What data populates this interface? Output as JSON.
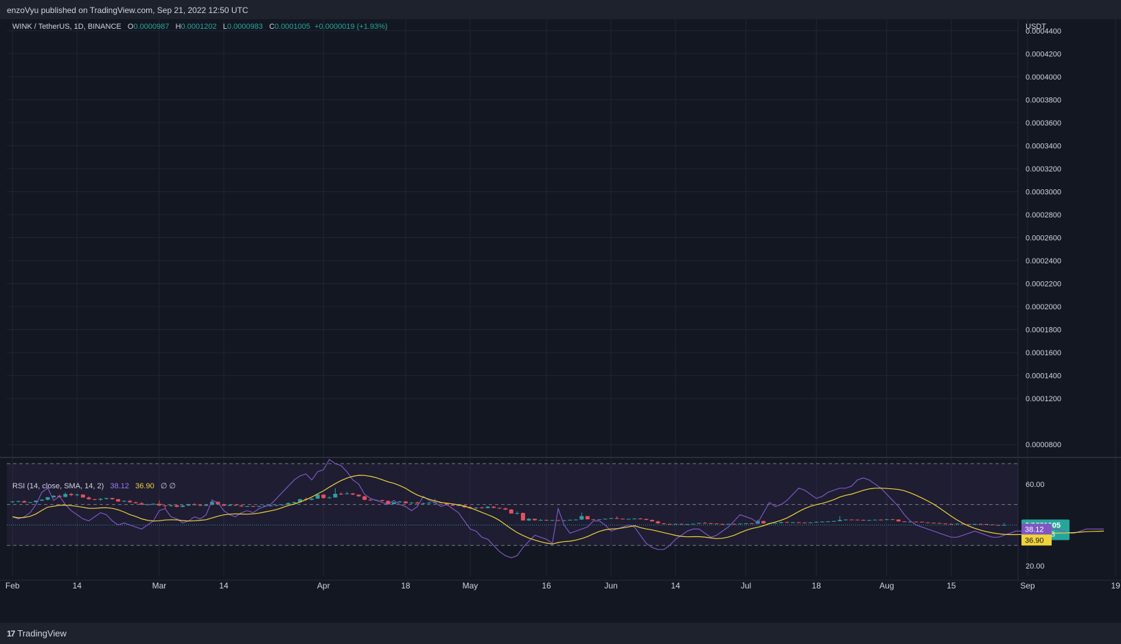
{
  "header": {
    "published": "enzoVyu published on TradingView.com, Sep 21, 2022 12:50 UTC"
  },
  "footer": {
    "brand": "TradingView",
    "brand_mark": "17"
  },
  "legend": {
    "symbol": "WINK / TetherUS, 1D, BINANCE",
    "o_label": "O",
    "open": "0.0000987",
    "h_label": "H",
    "high": "0.0001202",
    "l_label": "L",
    "low": "0.0000983",
    "c_label": "C",
    "close": "0.0001005",
    "change": "+0.0000019 (+1.93%)"
  },
  "rsi_legend": {
    "name": "RSI (14, close, SMA, 14, 2)",
    "rsi": "38.12",
    "sma": "36.90",
    "extra": "∅ ∅"
  },
  "axis": {
    "currency": "USDT",
    "price_ticks": [
      "0.0004400",
      "0.0004200",
      "0.0004000",
      "0.0003800",
      "0.0003600",
      "0.0003400",
      "0.0003200",
      "0.0003000",
      "0.0002800",
      "0.0002600",
      "0.0002400",
      "0.0002200",
      "0.0002000",
      "0.0001800",
      "0.0001600",
      "0.0001400",
      "0.0001200",
      "0.0000800"
    ],
    "price_tick_values": [
      0.00044,
      0.00042,
      0.0004,
      0.00038,
      0.00036,
      0.00034,
      0.00032,
      0.0003,
      0.00028,
      0.00026,
      0.00024,
      0.00022,
      0.0002,
      0.00018,
      0.00016,
      0.00014,
      0.00012,
      8e-05
    ],
    "last_price_label": "0.0001005",
    "countdown": "11:09:23",
    "rsi_ticks": [
      "60.00",
      "40.00",
      "20.00"
    ],
    "rsi_tick_values": [
      60,
      40,
      20
    ],
    "rsi_label": "38.12",
    "rsi_sma_label": "36.90",
    "x_labels": [
      "Feb",
      "14",
      "Mar",
      "14",
      "Apr",
      "18",
      "May",
      "16",
      "Jun",
      "14",
      "Jul",
      "18",
      "Aug",
      "15",
      "Sep",
      "19"
    ],
    "x_label_index": [
      0,
      11,
      25,
      36,
      53,
      67,
      78,
      91,
      102,
      113,
      125,
      137,
      149,
      160,
      173,
      188
    ]
  },
  "colors": {
    "background": "#131722",
    "grid": "#232632",
    "up": "#26a69a",
    "down": "#ef5350",
    "rsi_line": "#7e57c2",
    "rsi_sma": "#f0d33a",
    "rsi_band": "#7e57c2",
    "price_badge": "#26a69a",
    "rsi_badge": "#7e57c2",
    "sma_badge": "#f0d33a"
  },
  "chart_data": {
    "type": "candlestick",
    "title": "WINK / TetherUS, 1D, BINANCE",
    "x_start": "2022-02-01",
    "x_end": "2022-09-21",
    "y_scale": "linear",
    "ylim": [
      7e-05,
      0.00045
    ],
    "candles_compact": "3000,3100,2950,3050|3050,3120,2980,3080|3080,3150,2950,2960|2960,3000,2920,2990|2990,3150,2970,3120|3120,3250,3080,3200|3200,3450,3150,3420|3420,3600,3380,3550|3550,3650,3400,3450|3450,3850,3400,3700|3700,3800,3500,3600|3600,3750,3500,3650|3650,3680,3380,3400|3400,3500,3200,3250|3250,3300,3150,3200|3200,3350,3100,3280|3280,3380,3200,3350|3350,3380,3200,3250|3250,3280,3030,3050|3050,3150,3000,3100|3100,3200,2950,2980|2980,3050,2880,2900|2900,3000,2750,2780|2780,2850,2700,2800|2800,2900,2750,2850|2850,3150,2650,2700|2700,2750,2420,2650|2650,2800,2600,2720|2720,2800,2550,2580|2580,2720,2550,2700|2700,2850,2650,2820|2820,2900,2700,2740|2740,2800,2650,2680|2680,2780,2650,2760|2760,3250,2740,3020|3020,3050,2780,2800|2800,2850,2650,2680|2680,2800,2650,2760|2760,2800,2660,2700|2700,2780,2600,2620|2620,2680,2580,2640|2640,2700,2590,2600|2600,2680,2570,2660|2660,2720,2600,2690|2690,2750,2620,2700|2700,2760,2650,2740|2740,2800,2680,2780|2780,2950,2750,2920|2920,3050,2900,3000|3000,3300,2980,3250|3250,3400,3100,3200|3200,3350,3150,3300|3300,3700,3280,3650|3650,3600,3300,3350|3350,3500,3300,3400|3400,4200,3380,3720|3720,3850,3600,3700|3700,3900,3650,3750|3750,3800,3600,3650|3650,3650,3450,3500|3500,3520,3150,3200|3200,3250,3100,3150|3150,3200,3100,3180|3180,3200,3050,3100|3100,3150,2800,2820|2820,3000,2800,2980|2980,3100,2950,3050|3050,3080,2880,2900|2900,2980,2850,2960|2960,3050,2850,2880|2880,2950,2800,2900|2900,3000,2850,2950|2950,3280,2880,2980|2980,3020,2900,2920|2920,2940,2700,2750|2750,2780,2650,2680|2680,2750,2650,2720|2720,2730,2500,2550|2550,2650,2400,2450|2450,2550,2400,2520|2520,2600,2450,2480|2480,2650,2450,2600|2600,2650,2450,2500|2500,2520,2400,2450|2450,2520,2300,2350|2350,2400,2100,2000|2000,2200,1900,2050|2050,2100,1500,1400|1400,1600,1350,1550|1550,1500,1380,1420|1420,1500,1380,1450|1450,1480,1380,1400|1400,1450,1370,1430|1430,1460,1380,1400|1400,1450,1380,1420|1420,1480,1400,1460|1460,1500,1420,1480|1480,2080,1450,1780|1780,1700,1480,1500|1500,1520,1450,1480|1480,1520,1450,1500|1500,1560,1470,1550|1550,1620,1530,1600|1600,1760,1520,1550|1550,1580,1480,1520|1520,1560,1490,1540|1540,1600,1520,1560|1560,1630,1520,1530|1530,1560,1420,1450|1450,1480,1300,1320|1320,1380,1100,1150|1150,1160,1020,1100|1100,1130,1050,1080|1080,1120,1040,1110|1110,1140,1050,1070|1070,1100,1040,1090|1090,1130,1060,1120|1120,1200,1100,1180|1180,1260,1140,1160|1160,1200,1120,1140|1140,1160,1080,1100|1100,1130,1060,1080|1080,1120,1060,1110|1110,1140,1070,1090|1090,1150,1080,1130|1130,1170,1100,1150|1150,1180,1100,1120|1120,1480,1090,1350|1350,1380,1100,1150|1150,1180,1120,1160|1160,1200,1130,1180|1180,1270,1160,1260|1260,1300,1200,1220|1220,1260,1180,1240|1240,1270,1200,1220|1220,1250,1180,1200|1200,1240,1160,1230|1230,1300,1200,1280|1280,1320,1250,1300|1300,1340,1270,1320|1320,1360,1280,1350|1350,1780,1320,1450|1450,1500,1400,1480|1480,1500,1440,1470|1470,1490,1420,1450|1450,1480,1380,1400|1400,1460,1380,1440|1440,1480,1420,1470|1470,1500,1440,1460|1460,1540,1440,1500|1500,1530,1460,1480|1480,1500,1300,1320|1320,1340,1260,1280|1280,1310,1260,1300|1300,1320,1270,1290|1290,1300,1220,1230|1230,1250,1180,1200|1200,1220,1160,1180|1180,1200,1130,1140|1140,1150,1080,1100|1100,1130,1070,1090|1090,1140,1070,1120|1120,1130,1060,1080|1080,1100,1040,1060|1060,1110,1050,1100|1100,1120,1070,1090|1090,1100,1040,1050|1050,1070,1000,1010|1010,1030,960,987|987,1202,983,1005",
    "candles_scale": 1e-08,
    "candles_format": "open,high,low,close per day, separated by |",
    "rsi_series": [
      44,
      43,
      44,
      46,
      50,
      56,
      58,
      52,
      54,
      50,
      47,
      45,
      43,
      42,
      44,
      46,
      45,
      42,
      40,
      41,
      40,
      39,
      38,
      40,
      42,
      47,
      48,
      44,
      43,
      41,
      42,
      44,
      43,
      45,
      52,
      51,
      47,
      45,
      44,
      46,
      47,
      46,
      48,
      49,
      50,
      53,
      56,
      59,
      62,
      64,
      65,
      62,
      66,
      67,
      72,
      70,
      69,
      66,
      62,
      60,
      55,
      53,
      52,
      51,
      50,
      52,
      50,
      49,
      47,
      49,
      54,
      52,
      51,
      49,
      50,
      48,
      46,
      42,
      38,
      37,
      34,
      33,
      30,
      27,
      25,
      24,
      25,
      29,
      32,
      35,
      34,
      33,
      31,
      48,
      40,
      36,
      37,
      38,
      39,
      42,
      42,
      40,
      37,
      38,
      39,
      40,
      39,
      35,
      31,
      29,
      28,
      28,
      30,
      33,
      35,
      37,
      38,
      38,
      36,
      34,
      35,
      37,
      39,
      42,
      45,
      44,
      43,
      41,
      46,
      51,
      49,
      50,
      52,
      55,
      58,
      57,
      55,
      53,
      54,
      56,
      57,
      58,
      58,
      59,
      62,
      63,
      62,
      60,
      58,
      55,
      52,
      49,
      45,
      42,
      40,
      39,
      38,
      37,
      36,
      35,
      34,
      34,
      35,
      36,
      37,
      36,
      35,
      34,
      34,
      35,
      36,
      37,
      37,
      36,
      35,
      36,
      37,
      38,
      38,
      37,
      36,
      36,
      37,
      38,
      38,
      38,
      38
    ],
    "rsi_overbought": 70,
    "rsi_oversold": 30,
    "rsi_mid": 50,
    "rsi_ylim": [
      15,
      72
    ]
  }
}
